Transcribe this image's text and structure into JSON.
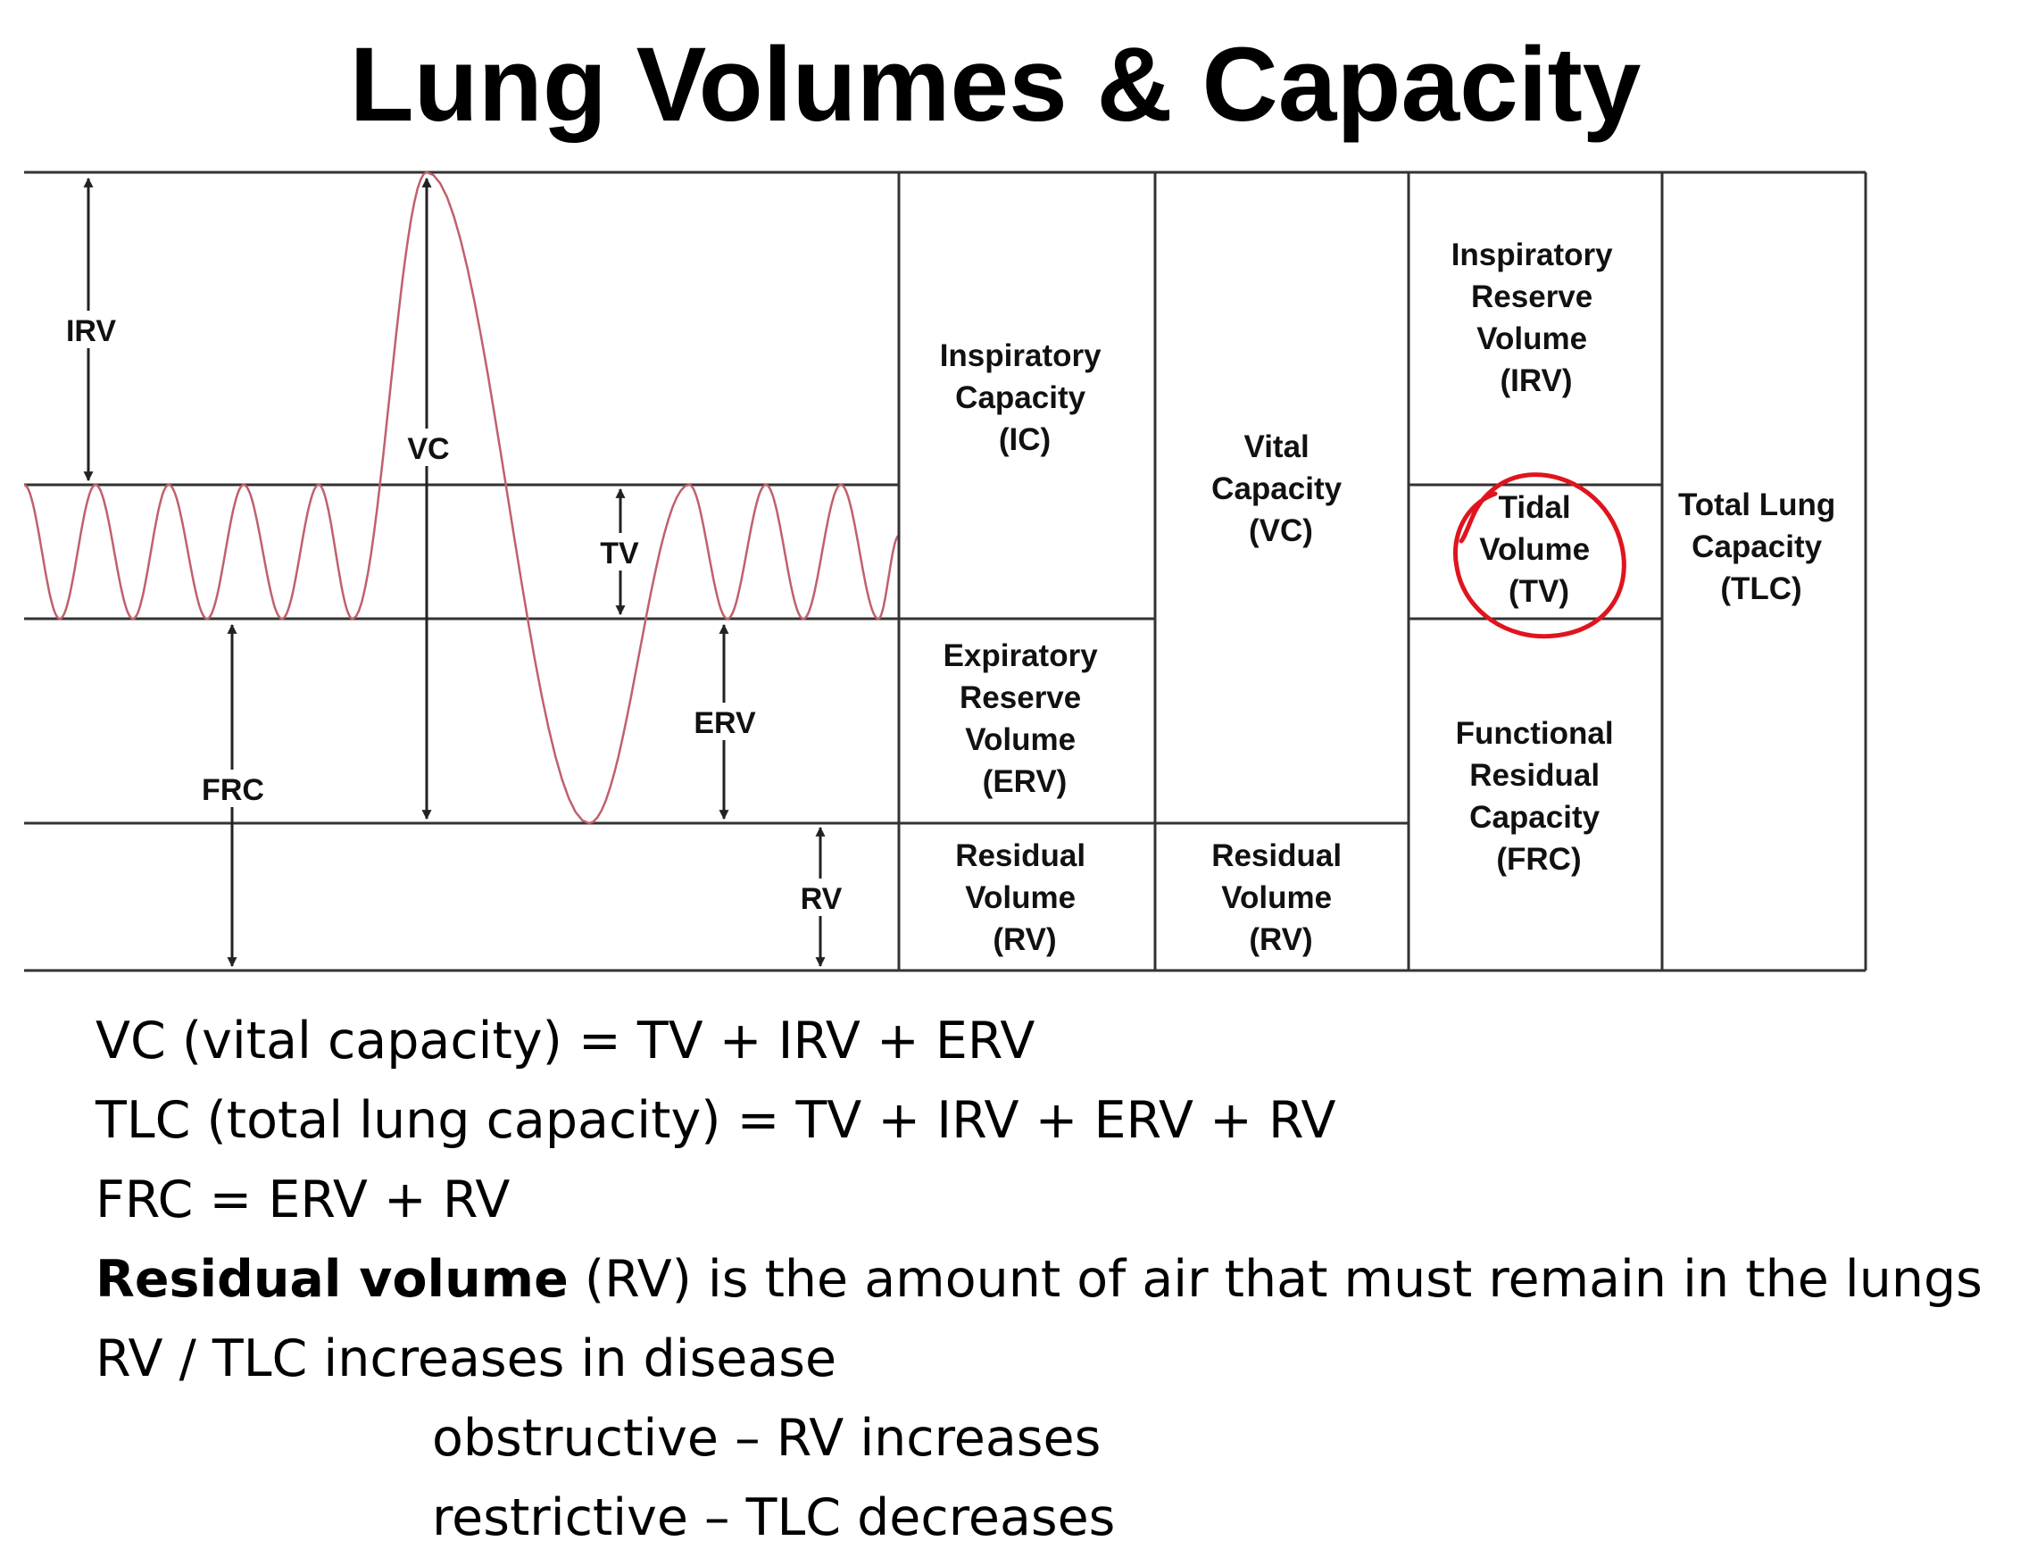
{
  "title": "Lung Volumes & Capacity",
  "diagram": {
    "axis_labels": {
      "irv": "IRV",
      "vc": "VC",
      "tv": "TV",
      "erv": "ERV",
      "frc": "FRC",
      "rv": "RV"
    },
    "columns": {
      "ic": [
        "Inspiratory",
        "Capacity",
        "(IC)"
      ],
      "erv": [
        "Expiratory",
        "Reserve",
        "Volume",
        "(ERV)"
      ],
      "rv1": [
        "Residual",
        "Volume",
        "(RV)"
      ],
      "vc": [
        "Vital",
        "Capacity",
        "(VC)"
      ],
      "rv2": [
        "Residual",
        "Volume",
        "(RV)"
      ],
      "irv": [
        "Inspiratory",
        "Reserve",
        "Volume",
        "(IRV)"
      ],
      "tv": [
        "Tidal",
        "Volume",
        "(TV)"
      ],
      "frc": [
        "Functional",
        "Residual",
        "Capacity",
        "(FRC)"
      ],
      "tlc": [
        "Total Lung",
        "Capacity",
        "(TLC)"
      ]
    },
    "colors": {
      "trace": "#c0606c",
      "annotation_circle": "#e0141e",
      "lines": "#333333"
    }
  },
  "notes": {
    "line1": "VC (vital capacity) = TV + IRV + ERV",
    "line2": "TLC (total lung capacity) = TV + IRV + ERV + RV",
    "line3": "FRC = ERV + RV",
    "line4_bold": "Residual volume",
    "line4_rest": " (RV) is the amount of air that must remain in the lungs",
    "line5": "RV / TLC increases in disease",
    "line6": "obstructive – RV increases",
    "line7": "restrictive – TLC decreases"
  }
}
